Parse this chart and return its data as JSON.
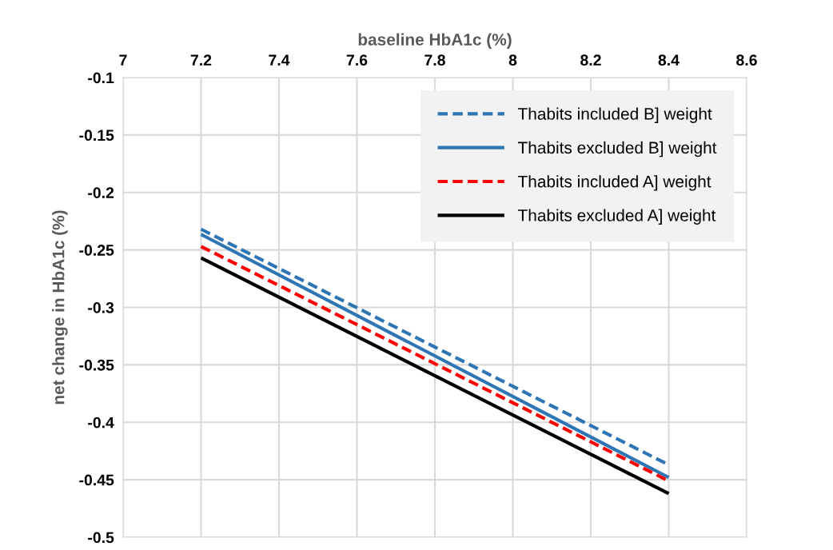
{
  "chart_data": {
    "type": "line",
    "xlabel": "baseline HbA1c (%)",
    "ylabel": "net change in HbA1c (%)",
    "x": [
      7.2,
      8.4
    ],
    "series": [
      {
        "name": "Thabits included B] weight",
        "color": "#2e75b6",
        "line_style": "dashed",
        "values": [
          -0.232,
          -0.437
        ]
      },
      {
        "name": "Thabits excluded B] weight",
        "color": "#2e75b6",
        "line_style": "solid",
        "values": [
          -0.2365,
          -0.448
        ]
      },
      {
        "name": "Thabits included A] weight",
        "color": "#ff0000",
        "line_style": "dashed",
        "values": [
          -0.247,
          -0.451
        ]
      },
      {
        "name": "Thabits excluded A] weight",
        "color": "#000000",
        "line_style": "solid",
        "values": [
          -0.257,
          -0.462
        ]
      }
    ],
    "xlim": [
      7,
      8.6
    ],
    "xticks": [
      7,
      7.2,
      7.4,
      7.6,
      7.8,
      8,
      8.2,
      8.4,
      8.6
    ],
    "ylim": [
      -0.5,
      -0.1
    ],
    "yticks": [
      -0.5,
      -0.45,
      -0.4,
      -0.35,
      -0.3,
      -0.25,
      -0.2,
      -0.15,
      -0.1
    ],
    "grid": true,
    "legend": "top right",
    "marker": "none"
  }
}
